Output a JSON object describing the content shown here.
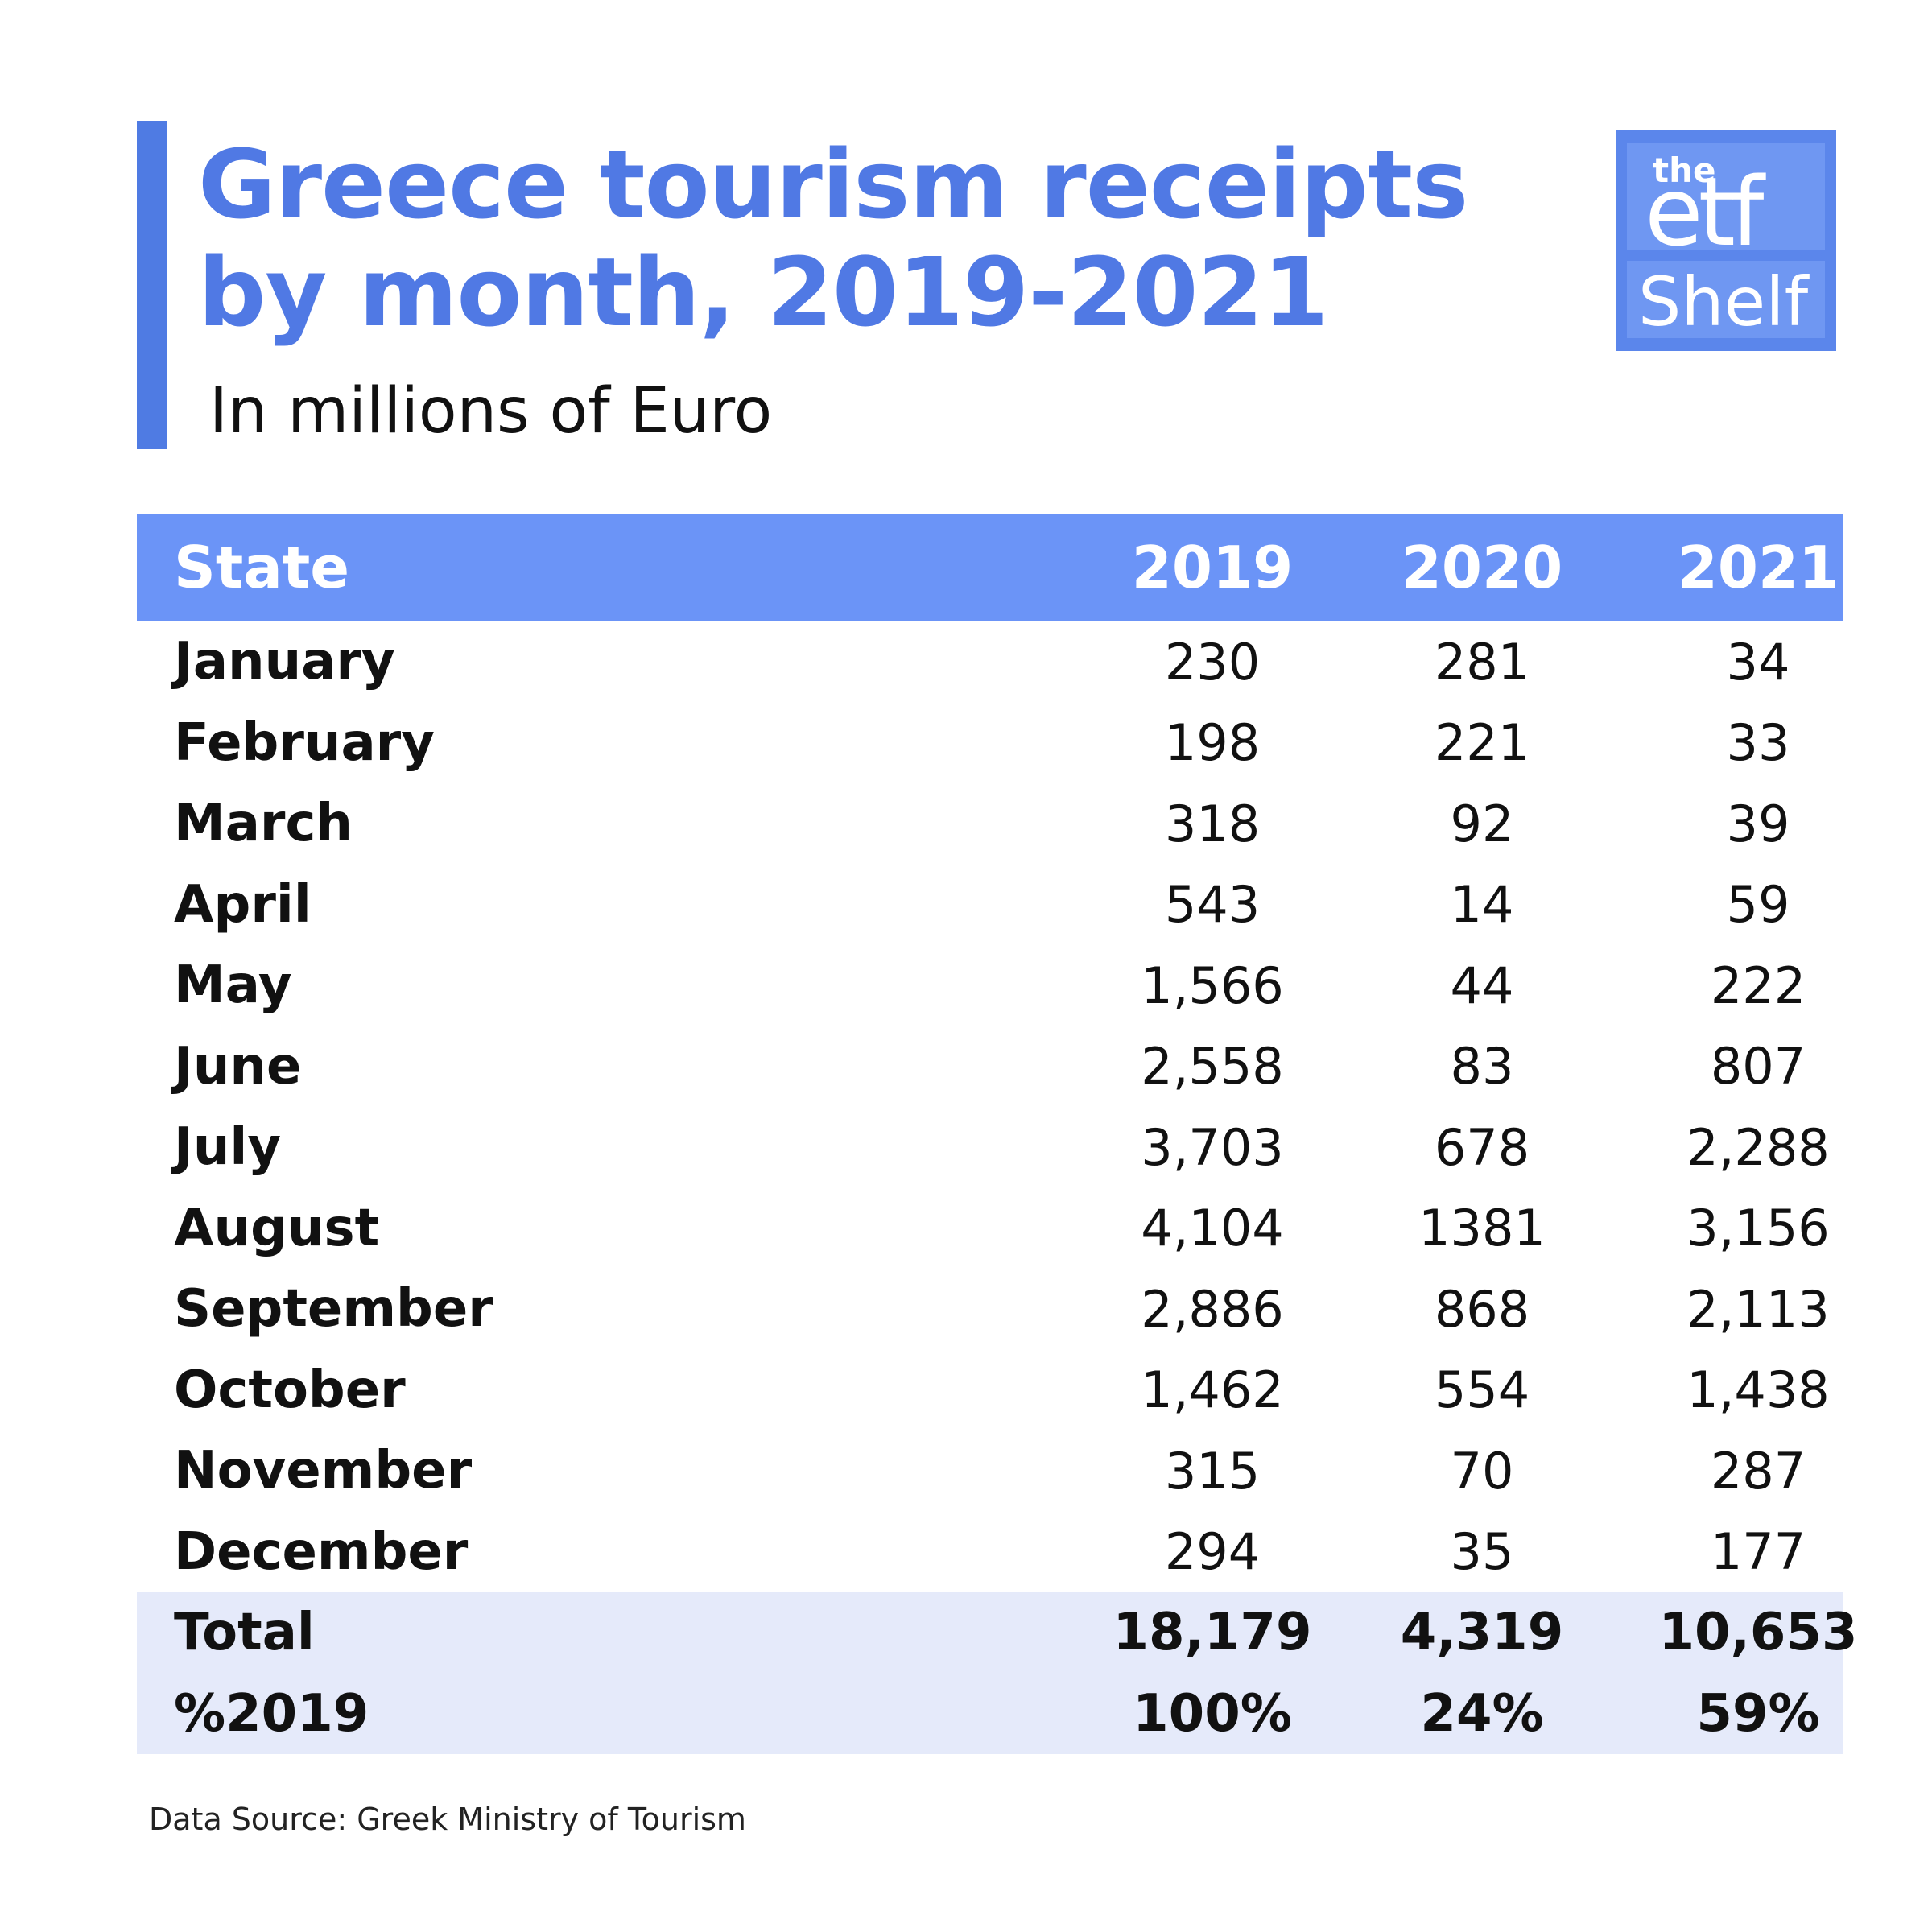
{
  "chart_data": {
    "type": "table",
    "title": "Greece tourism receipts by month, 2019-2021",
    "title_lines": [
      "Greece tourism receipts",
      "by month, 2019-2021"
    ],
    "subtitle": "In millions of Euro",
    "columns": [
      "State",
      "2019",
      "2020",
      "2021"
    ],
    "rows": [
      {
        "label": "January",
        "values": [
          "230",
          "281",
          "34"
        ]
      },
      {
        "label": "February",
        "values": [
          "198",
          "221",
          "33"
        ]
      },
      {
        "label": "March",
        "values": [
          "318",
          "92",
          "39"
        ]
      },
      {
        "label": "April",
        "values": [
          "543",
          "14",
          "59"
        ]
      },
      {
        "label": "May",
        "values": [
          "1,566",
          "44",
          "222"
        ]
      },
      {
        "label": "June",
        "values": [
          "2,558",
          "83",
          "807"
        ]
      },
      {
        "label": "July",
        "values": [
          "3,703",
          "678",
          "2,288"
        ]
      },
      {
        "label": "August",
        "values": [
          "4,104",
          "1381",
          "3,156"
        ]
      },
      {
        "label": "September",
        "values": [
          "2,886",
          "868",
          "2,113"
        ]
      },
      {
        "label": "October",
        "values": [
          "1,462",
          "554",
          "1,438"
        ]
      },
      {
        "label": "November",
        "values": [
          "315",
          "70",
          "287"
        ]
      },
      {
        "label": "December",
        "values": [
          "294",
          "35",
          "177"
        ]
      }
    ],
    "summary_rows": [
      {
        "label": "Total",
        "values": [
          "18,179",
          "4,319",
          "10,653"
        ]
      },
      {
        "label": "%2019",
        "values": [
          "100%",
          "24%",
          "59%"
        ]
      }
    ],
    "source": "Data Source: Greek Ministry of Tourism"
  },
  "logo": {
    "line1": "the",
    "line2": "etf",
    "line3": "Shelf"
  },
  "colors": {
    "accent": "#5079e4",
    "header_bg": "#6b94f7",
    "summary_bg": "#e5eafa"
  }
}
